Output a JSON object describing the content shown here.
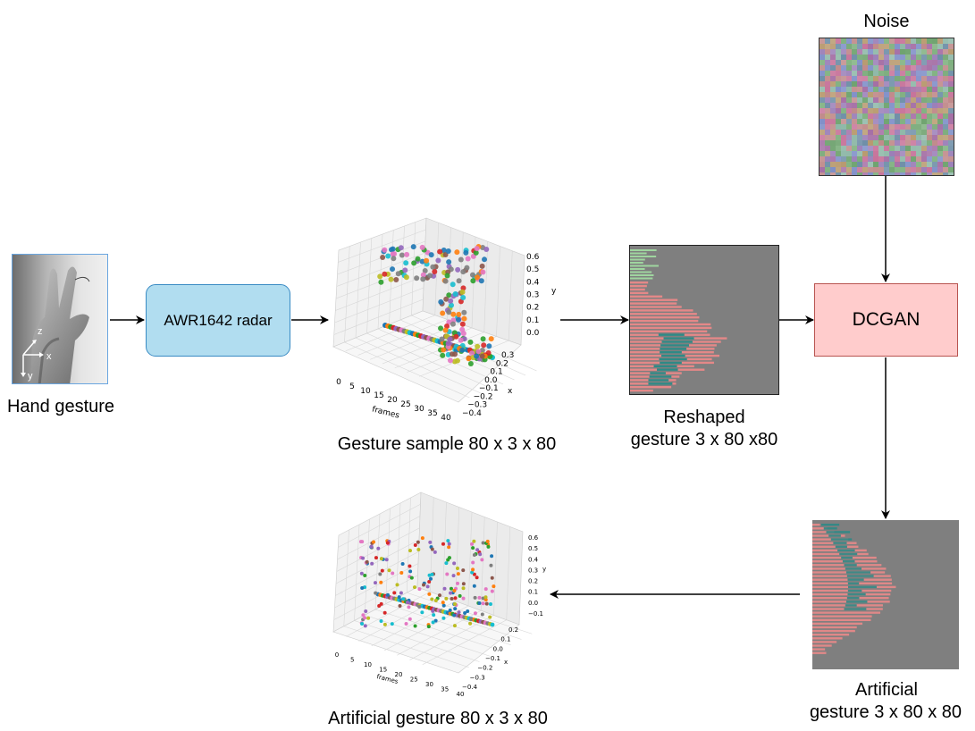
{
  "nodes": {
    "hand": {
      "caption": "Hand gesture",
      "axis_z": "z",
      "axis_x": "x",
      "axis_y": "y"
    },
    "radar": {
      "label": "AWR1642 radar",
      "fill": "#b1ddf0",
      "stroke": "#3a8bc4"
    },
    "gesture_sample": {
      "caption": "Gesture sample 80 x 3 x 80"
    },
    "reshaped": {
      "caption_line1": "Reshaped",
      "caption_line2": "gesture 3 x 80 x80"
    },
    "noise": {
      "caption": "Noise"
    },
    "dcgan": {
      "label": "DCGAN",
      "fill": "#ffcccc",
      "stroke": "#b85450"
    },
    "artificial": {
      "caption_line1": "Artificial",
      "caption_line2": "gesture 3 x 80 x 80"
    },
    "artificial_plot": {
      "caption": "Artificial gesture 80 x 3 x 80"
    }
  },
  "plot_top": {
    "xlabel": "frames",
    "ylabel": "y",
    "zlabel": "x",
    "frame_ticks": [
      "0",
      "5",
      "10",
      "15",
      "20",
      "25",
      "30",
      "35",
      "40"
    ],
    "y_ticks": [
      "0.6",
      "0.5",
      "0.4",
      "0.3",
      "0.2",
      "0.1",
      "0.0"
    ],
    "x_ticks": [
      "0.3",
      "0.2",
      "0.1",
      "0.0",
      "−0.1",
      "−0.2",
      "−0.3",
      "−0.4"
    ]
  },
  "plot_bottom": {
    "xlabel": "frames",
    "ylabel": "y",
    "zlabel": "x",
    "frame_ticks": [
      "0",
      "5",
      "10",
      "15",
      "20",
      "25",
      "30",
      "35",
      "40"
    ],
    "y_ticks": [
      "0.6",
      "0.5",
      "0.4",
      "0.3",
      "0.2",
      "0.1",
      "0.0",
      "−0.1"
    ],
    "x_ticks": [
      "0.2",
      "0.1",
      "0.0",
      "−0.1",
      "−0.2",
      "−0.3",
      "−0.4"
    ]
  },
  "palette": [
    "#1f77b4",
    "#ff7f0e",
    "#2ca02c",
    "#d62728",
    "#9467bd",
    "#8c564b",
    "#e377c2",
    "#7f7f7f",
    "#bcbd22",
    "#17becf"
  ]
}
